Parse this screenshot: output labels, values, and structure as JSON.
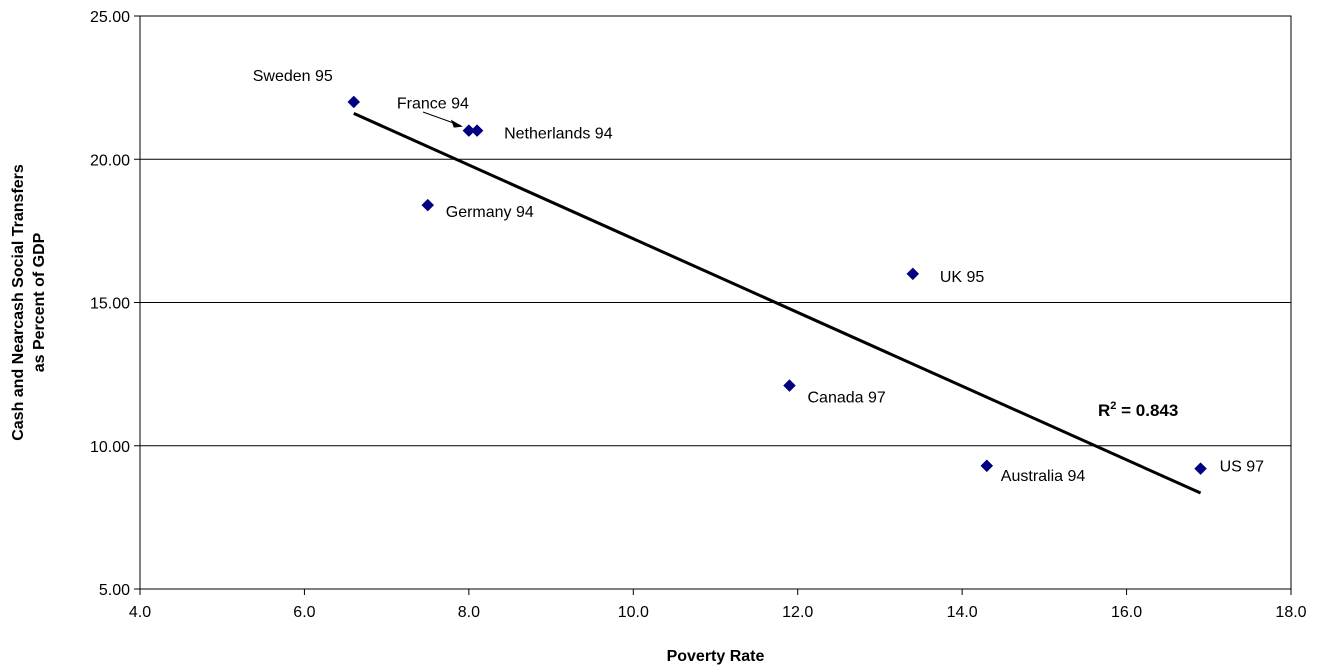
{
  "chart_data": {
    "type": "scatter",
    "title": "",
    "xlabel": "Poverty Rate",
    "ylabel": [
      "Cash and Nearcash Social Transfers",
      "as Percent of GDP"
    ],
    "xlim": [
      4.0,
      18.0
    ],
    "ylim": [
      5.0,
      25.0
    ],
    "xticks": [
      "4.0",
      "6.0",
      "8.0",
      "10.0",
      "12.0",
      "14.0",
      "16.0",
      "18.0"
    ],
    "yticks": [
      "5.00",
      "10.00",
      "15.00",
      "20.00",
      "25.00"
    ],
    "xtick_values": [
      4,
      6,
      8,
      10,
      12,
      14,
      16,
      18
    ],
    "ytick_values": [
      5,
      10,
      15,
      20,
      25
    ],
    "grid": "horizontal",
    "marker_color": "#000080",
    "points": [
      {
        "label": "Sweden 95",
        "x": 6.6,
        "y": 22.0
      },
      {
        "label": "France 94",
        "x": 8.0,
        "y": 21.0
      },
      {
        "label": "Netherlands 94",
        "x": 8.1,
        "y": 21.0
      },
      {
        "label": "Germany 94",
        "x": 7.5,
        "y": 18.4
      },
      {
        "label": "UK 95",
        "x": 13.4,
        "y": 16.0
      },
      {
        "label": "Canada 97",
        "x": 11.9,
        "y": 12.1
      },
      {
        "label": "Australia 94",
        "x": 14.3,
        "y": 9.3
      },
      {
        "label": "US 97",
        "x": 16.9,
        "y": 9.2
      }
    ],
    "trendline": {
      "x": [
        6.6,
        16.9
      ],
      "y": [
        21.6,
        8.35
      ],
      "r2_prefix": "R",
      "r2_sup": "2",
      "r2_value": " = 0.843"
    }
  }
}
